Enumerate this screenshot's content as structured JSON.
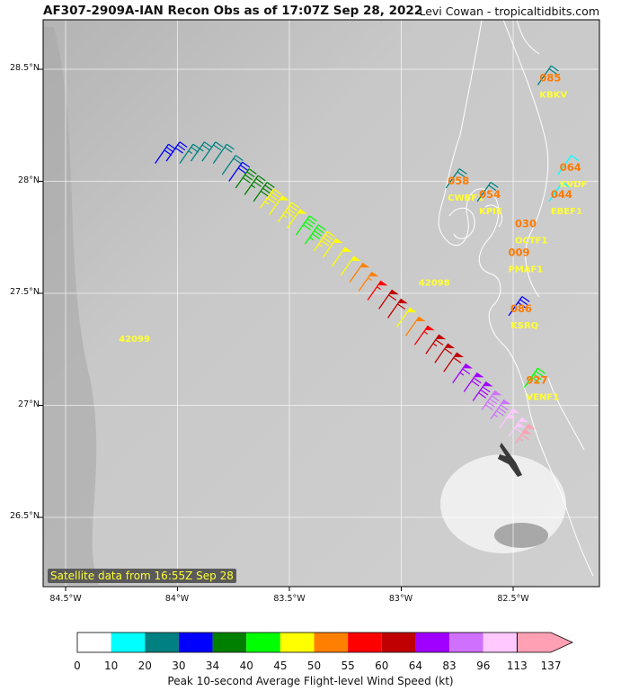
{
  "header": {
    "title": "AF307-2909A-IAN Recon Obs as of 17:07Z Sep 28, 2022",
    "credit": "Levi Cowan - tropicaltidbits.com"
  },
  "map": {
    "satellite_note": "Satellite data from 16:55Z Sep 28",
    "lat_labels": [
      "28.5°N",
      "28°N",
      "27.5°N",
      "27°N",
      "26.5°N"
    ],
    "lon_labels": [
      "84.5°W",
      "84°W",
      "83.5°W",
      "83°W",
      "82.5°W"
    ],
    "stations": [
      {
        "id": "KBKV",
        "value": "085",
        "lat": 28.43,
        "lon": -82.39,
        "kt": 22
      },
      {
        "id": "CWBF1",
        "value": "058",
        "lat": 27.97,
        "lon": -82.8,
        "kt": 22
      },
      {
        "id": "KPIE",
        "value": "054",
        "lat": 27.91,
        "lon": -82.66,
        "kt": 22
      },
      {
        "id": "EBEF1",
        "value": "044",
        "lat": 27.91,
        "lon": -82.34,
        "kt": 12
      },
      {
        "id": "KVDF",
        "value": "064",
        "lat": 28.03,
        "lon": -82.3,
        "kt": 12
      },
      {
        "id": "OCTF1",
        "value": "030",
        "lat": 27.78,
        "lon": -82.5,
        "kt": 0
      },
      {
        "id": "PMAF1",
        "value": "009",
        "lat": 27.65,
        "lon": -82.53,
        "kt": 0
      },
      {
        "id": "KSRQ",
        "value": "086",
        "lat": 27.4,
        "lon": -82.52,
        "kt": 32
      },
      {
        "id": "VENF1",
        "value": "927",
        "lat": 27.08,
        "lon": -82.45,
        "kt": 42
      },
      {
        "id": "42098",
        "value": "",
        "lat": 27.59,
        "lon": -82.93,
        "kt": null
      },
      {
        "id": "42099",
        "value": "",
        "lat": 27.34,
        "lon": -84.27,
        "kt": null
      }
    ],
    "flight_obs": [
      {
        "lat": 28.08,
        "lon": -84.1,
        "kt": 30
      },
      {
        "lat": 28.09,
        "lon": -84.05,
        "kt": 30
      },
      {
        "lat": 28.08,
        "lon": -83.99,
        "kt": 25
      },
      {
        "lat": 28.09,
        "lon": -83.94,
        "kt": 25
      },
      {
        "lat": 28.09,
        "lon": -83.89,
        "kt": 22
      },
      {
        "lat": 28.08,
        "lon": -83.84,
        "kt": 22
      },
      {
        "lat": 28.03,
        "lon": -83.8,
        "kt": 22
      },
      {
        "lat": 28.0,
        "lon": -83.77,
        "kt": 30
      },
      {
        "lat": 27.97,
        "lon": -83.74,
        "kt": 38
      },
      {
        "lat": 27.94,
        "lon": -83.7,
        "kt": 36
      },
      {
        "lat": 27.91,
        "lon": -83.66,
        "kt": 38
      },
      {
        "lat": 27.88,
        "lon": -83.63,
        "kt": 47
      },
      {
        "lat": 27.85,
        "lon": -83.59,
        "kt": 48
      },
      {
        "lat": 27.82,
        "lon": -83.55,
        "kt": 47
      },
      {
        "lat": 27.79,
        "lon": -83.51,
        "kt": 49
      },
      {
        "lat": 27.76,
        "lon": -83.47,
        "kt": 42
      },
      {
        "lat": 27.72,
        "lon": -83.43,
        "kt": 44
      },
      {
        "lat": 27.69,
        "lon": -83.39,
        "kt": 47
      },
      {
        "lat": 27.66,
        "lon": -83.35,
        "kt": 48
      },
      {
        "lat": 27.62,
        "lon": -83.31,
        "kt": 49
      },
      {
        "lat": 27.58,
        "lon": -83.27,
        "kt": 48
      },
      {
        "lat": 27.55,
        "lon": -83.23,
        "kt": 52
      },
      {
        "lat": 27.51,
        "lon": -83.19,
        "kt": 54
      },
      {
        "lat": 27.47,
        "lon": -83.15,
        "kt": 56
      },
      {
        "lat": 27.43,
        "lon": -83.1,
        "kt": 60
      },
      {
        "lat": 27.39,
        "lon": -83.06,
        "kt": 62
      },
      {
        "lat": 27.35,
        "lon": -83.02,
        "kt": 48
      },
      {
        "lat": 27.31,
        "lon": -82.98,
        "kt": 52
      },
      {
        "lat": 27.27,
        "lon": -82.94,
        "kt": 56
      },
      {
        "lat": 27.23,
        "lon": -82.89,
        "kt": 63
      },
      {
        "lat": 27.19,
        "lon": -82.85,
        "kt": 60
      },
      {
        "lat": 27.15,
        "lon": -82.81,
        "kt": 62
      },
      {
        "lat": 27.1,
        "lon": -82.77,
        "kt": 66
      },
      {
        "lat": 27.06,
        "lon": -82.72,
        "kt": 70
      },
      {
        "lat": 27.02,
        "lon": -82.68,
        "kt": 80
      },
      {
        "lat": 26.98,
        "lon": -82.64,
        "kt": 88
      },
      {
        "lat": 26.94,
        "lon": -82.6,
        "kt": 86
      },
      {
        "lat": 26.9,
        "lon": -82.56,
        "kt": 100
      },
      {
        "lat": 26.86,
        "lon": -82.52,
        "kt": 110
      },
      {
        "lat": 26.83,
        "lon": -82.49,
        "kt": 115
      }
    ]
  },
  "colorbar": {
    "title": "Peak 10-second Average Flight-level Wind Speed (kt)",
    "ticks": [
      "0",
      "10",
      "20",
      "30",
      "34",
      "40",
      "45",
      "50",
      "55",
      "60",
      "64",
      "83",
      "96",
      "113",
      "137"
    ],
    "colors": [
      "#ffffff",
      "#00ffff",
      "#008080",
      "#0000ff",
      "#008000",
      "#00ff00",
      "#ffff00",
      "#ff8000",
      "#ff0000",
      "#c00000",
      "#a000ff",
      "#d070ff",
      "#ffc8ff",
      "#ffa0b4"
    ]
  }
}
